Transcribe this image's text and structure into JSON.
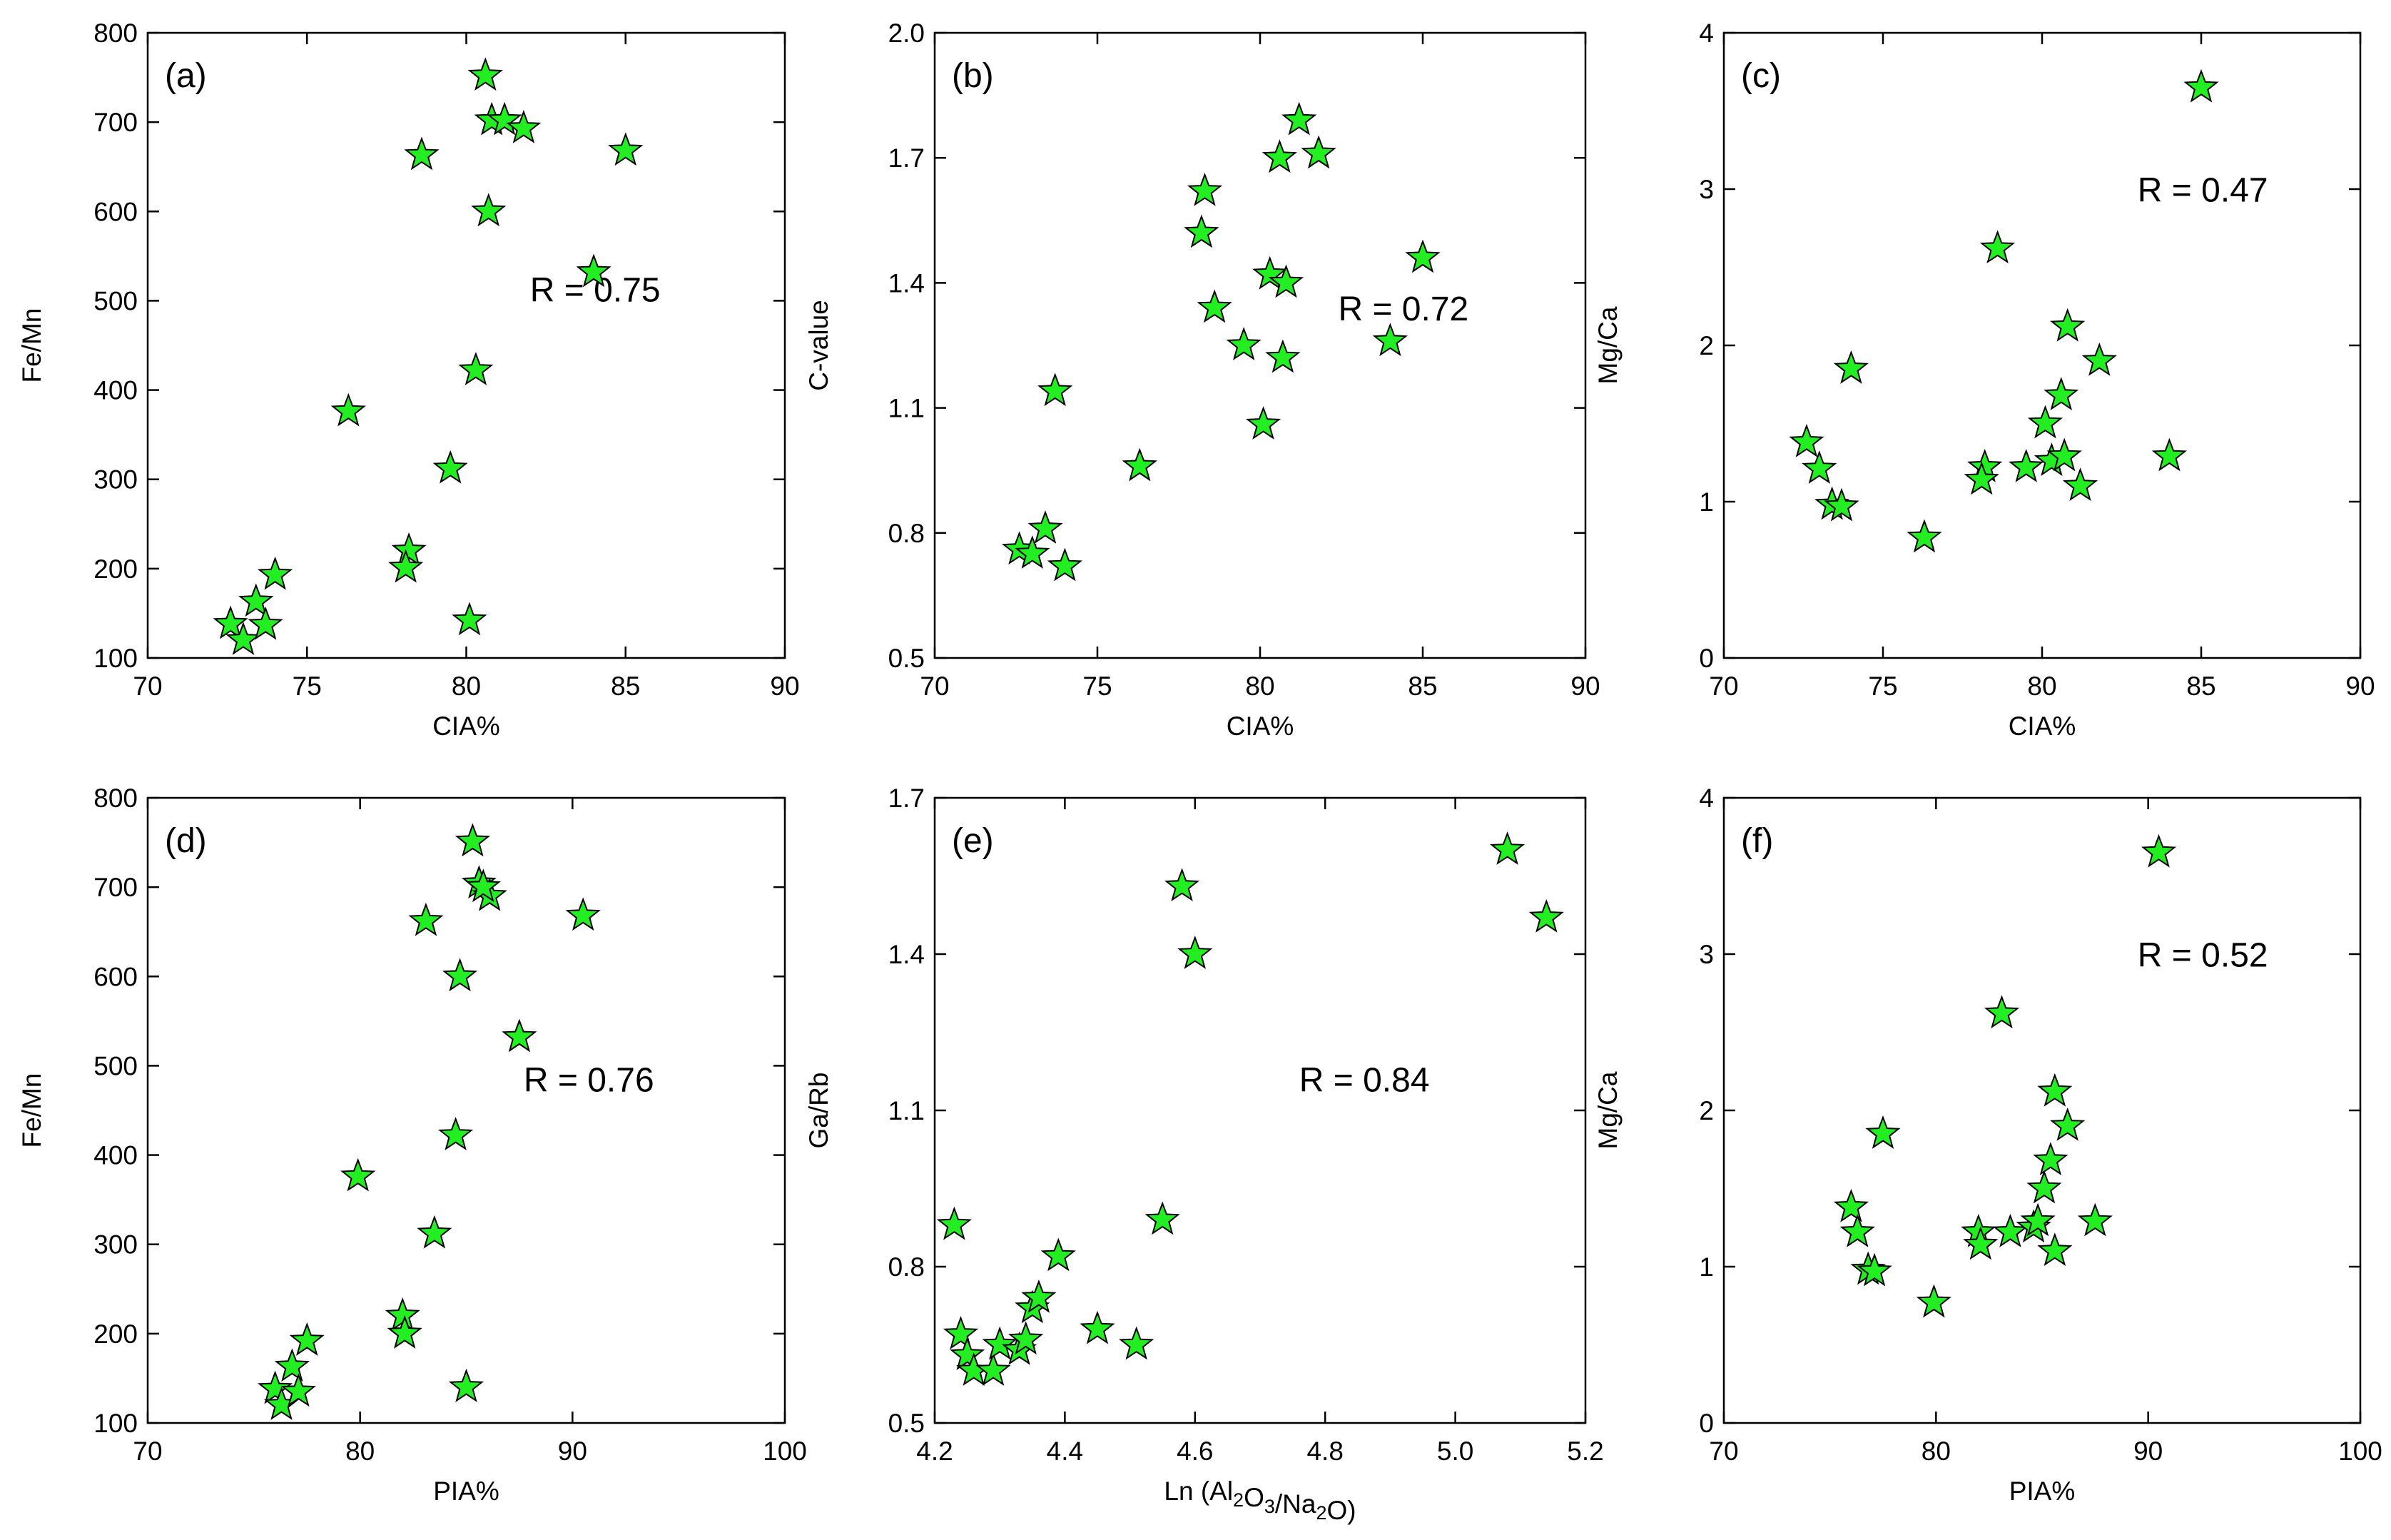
{
  "colors": {
    "marker_fill": "#22ee22",
    "marker_stroke": "#000000",
    "axes": "#000000"
  },
  "chart_data": [
    {
      "type": "scatter",
      "panel": "(a)",
      "xlabel": "CIA%",
      "ylabel": "Fe/Mn",
      "annotation": "R = 0.75",
      "xlim": [
        70,
        90
      ],
      "ylim": [
        100,
        800
      ],
      "xticks": [
        70,
        75,
        80,
        85,
        90
      ],
      "yticks": [
        100,
        200,
        300,
        400,
        500,
        600,
        700,
        800
      ],
      "points": [
        [
          72.6,
          138
        ],
        [
          73.0,
          120
        ],
        [
          73.4,
          163
        ],
        [
          73.7,
          137
        ],
        [
          74.0,
          193
        ],
        [
          76.3,
          376
        ],
        [
          78.2,
          220
        ],
        [
          78.1,
          201
        ],
        [
          78.6,
          663
        ],
        [
          79.5,
          312
        ],
        [
          80.1,
          142
        ],
        [
          80.3,
          422
        ],
        [
          80.6,
          752
        ],
        [
          80.7,
          600
        ],
        [
          80.8,
          702
        ],
        [
          81.2,
          702
        ],
        [
          81.8,
          693
        ],
        [
          84.0,
          532
        ],
        [
          85.0,
          668
        ]
      ]
    },
    {
      "type": "scatter",
      "panel": "(b)",
      "xlabel": "CIA%",
      "ylabel": "C-value",
      "annotation": "R = 0.72",
      "xlim": [
        70,
        90
      ],
      "ylim": [
        0.5,
        2.0
      ],
      "xticks": [
        70,
        75,
        80,
        85,
        90
      ],
      "yticks": [
        "0.5",
        "0.8",
        "1.1",
        "1.4",
        "1.7",
        "2.0"
      ],
      "points": [
        [
          72.6,
          0.76
        ],
        [
          73.0,
          0.75
        ],
        [
          73.4,
          0.81
        ],
        [
          73.7,
          1.14
        ],
        [
          74.0,
          0.72
        ],
        [
          76.3,
          0.96
        ],
        [
          78.2,
          1.52
        ],
        [
          78.3,
          1.62
        ],
        [
          78.6,
          1.34
        ],
        [
          79.5,
          1.25
        ],
        [
          80.1,
          1.06
        ],
        [
          80.3,
          1.42
        ],
        [
          80.6,
          1.7
        ],
        [
          80.7,
          1.22
        ],
        [
          80.8,
          1.4
        ],
        [
          81.2,
          1.79
        ],
        [
          81.8,
          1.71
        ],
        [
          84.0,
          1.26
        ],
        [
          85.0,
          1.46
        ]
      ]
    },
    {
      "type": "scatter",
      "panel": "(c)",
      "xlabel": "CIA%",
      "ylabel": "Mg/Ca",
      "annotation": "R = 0.47",
      "xlim": [
        70,
        90
      ],
      "ylim": [
        0,
        4
      ],
      "xticks": [
        70,
        75,
        80,
        85,
        90
      ],
      "yticks": [
        0,
        1,
        2,
        3,
        4
      ],
      "points": [
        [
          72.6,
          1.38
        ],
        [
          73.0,
          1.21
        ],
        [
          73.4,
          0.98
        ],
        [
          73.7,
          0.97
        ],
        [
          74.0,
          1.85
        ],
        [
          76.3,
          0.77
        ],
        [
          78.2,
          1.22
        ],
        [
          78.1,
          1.14
        ],
        [
          78.6,
          2.62
        ],
        [
          79.5,
          1.22
        ],
        [
          80.1,
          1.5
        ],
        [
          80.3,
          1.26
        ],
        [
          80.6,
          1.68
        ],
        [
          80.7,
          1.29
        ],
        [
          80.8,
          2.12
        ],
        [
          81.2,
          1.1
        ],
        [
          81.8,
          1.9
        ],
        [
          84.0,
          1.29
        ],
        [
          85.0,
          3.65
        ]
      ]
    },
    {
      "type": "scatter",
      "panel": "(d)",
      "xlabel": "PIA%",
      "ylabel": "Fe/Mn",
      "annotation": "R = 0.76",
      "xlim": [
        70,
        100
      ],
      "ylim": [
        100,
        800
      ],
      "xticks": [
        70,
        80,
        90,
        100
      ],
      "yticks": [
        100,
        200,
        300,
        400,
        500,
        600,
        700,
        800
      ],
      "points": [
        [
          76.0,
          138
        ],
        [
          76.3,
          120
        ],
        [
          76.8,
          163
        ],
        [
          77.1,
          135
        ],
        [
          77.5,
          192
        ],
        [
          79.9,
          376
        ],
        [
          82.0,
          220
        ],
        [
          82.1,
          200
        ],
        [
          83.1,
          662
        ],
        [
          83.5,
          312
        ],
        [
          84.5,
          422
        ],
        [
          84.7,
          600
        ],
        [
          85.0,
          140
        ],
        [
          85.3,
          751
        ],
        [
          85.6,
          704
        ],
        [
          86.1,
          690
        ],
        [
          85.8,
          700
        ],
        [
          87.5,
          532
        ],
        [
          90.5,
          668
        ]
      ]
    },
    {
      "type": "scatter",
      "panel": "(e)",
      "xlabel": "Ln (Al2O3/Na2O)",
      "ylabel": "Ga/Rb",
      "annotation": "R = 0.84",
      "xlim": [
        4.2,
        5.2
      ],
      "ylim": [
        0.5,
        1.7
      ],
      "xticks": [
        "4.2",
        "4.4",
        "4.6",
        "4.8",
        "5.0",
        "5.2"
      ],
      "yticks": [
        "0.5",
        "0.8",
        "1.1",
        "1.4",
        "1.7"
      ],
      "points": [
        [
          4.23,
          0.88
        ],
        [
          4.24,
          0.67
        ],
        [
          4.25,
          0.63
        ],
        [
          4.26,
          0.6
        ],
        [
          4.29,
          0.6
        ],
        [
          4.3,
          0.65
        ],
        [
          4.33,
          0.64
        ],
        [
          4.34,
          0.66
        ],
        [
          4.35,
          0.72
        ],
        [
          4.36,
          0.74
        ],
        [
          4.39,
          0.82
        ],
        [
          4.45,
          0.68
        ],
        [
          4.51,
          0.65
        ],
        [
          4.55,
          0.89
        ],
        [
          4.58,
          1.53
        ],
        [
          4.6,
          1.4
        ],
        [
          5.08,
          1.6
        ],
        [
          5.14,
          1.47
        ]
      ]
    },
    {
      "type": "scatter",
      "panel": "(f)",
      "xlabel": "PIA%",
      "ylabel": "Mg/Ca",
      "annotation": "R = 0.52",
      "xlim": [
        70,
        100
      ],
      "ylim": [
        0,
        4
      ],
      "xticks": [
        70,
        80,
        90,
        100
      ],
      "yticks": [
        0,
        1,
        2,
        3,
        4
      ],
      "points": [
        [
          76.0,
          1.38
        ],
        [
          76.3,
          1.22
        ],
        [
          76.8,
          0.98
        ],
        [
          77.1,
          0.97
        ],
        [
          77.5,
          1.85
        ],
        [
          79.9,
          0.77
        ],
        [
          82.0,
          1.22
        ],
        [
          82.1,
          1.14
        ],
        [
          83.1,
          2.62
        ],
        [
          83.5,
          1.22
        ],
        [
          84.6,
          1.25
        ],
        [
          84.8,
          1.29
        ],
        [
          85.1,
          1.5
        ],
        [
          85.4,
          1.68
        ],
        [
          85.6,
          1.1
        ],
        [
          85.6,
          2.12
        ],
        [
          86.2,
          1.9
        ],
        [
          87.5,
          1.29
        ],
        [
          90.5,
          3.65
        ]
      ]
    }
  ]
}
